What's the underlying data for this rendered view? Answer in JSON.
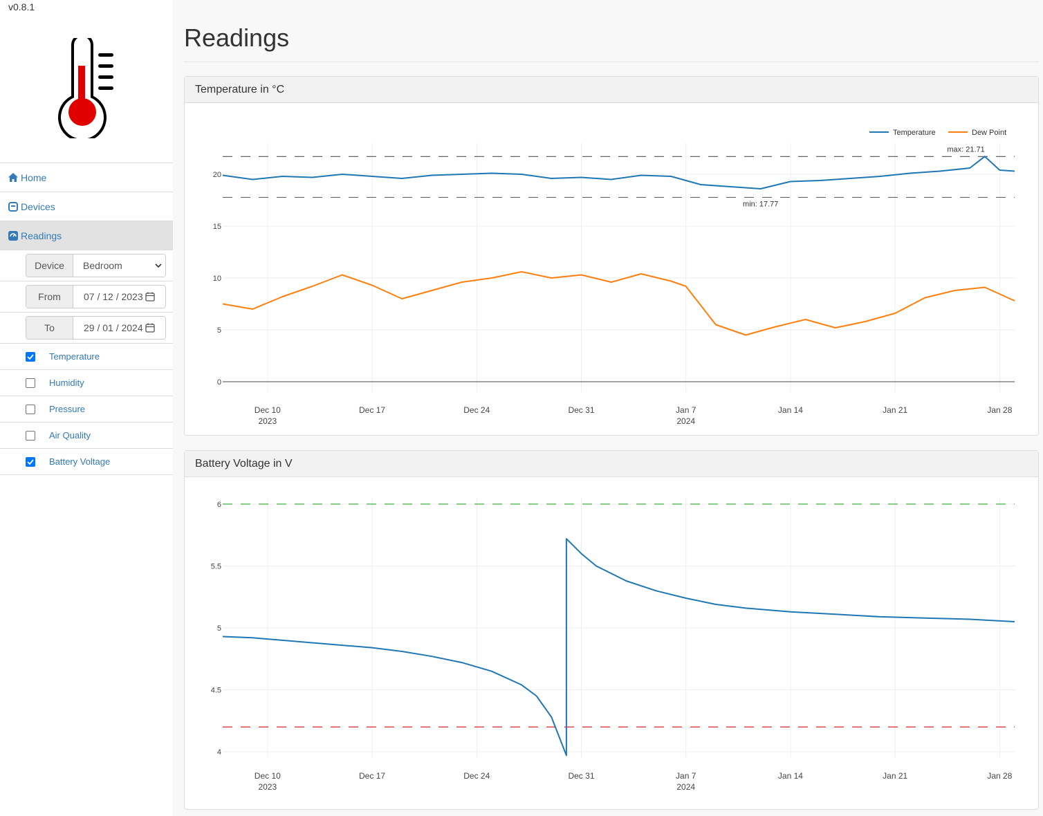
{
  "app": {
    "version": "v0.8.1"
  },
  "nav": {
    "home": "Home",
    "devices": "Devices",
    "readings": "Readings"
  },
  "filters": {
    "device_label": "Device",
    "device_value": "Bedroom",
    "from_label": "From",
    "from_value": "07 / 12 / 2023",
    "to_label": "To",
    "to_value": "29 / 01 / 2024"
  },
  "checkboxes": [
    {
      "label": "Temperature",
      "checked": true
    },
    {
      "label": "Humidity",
      "checked": false
    },
    {
      "label": "Pressure",
      "checked": false
    },
    {
      "label": "Air Quality",
      "checked": false
    },
    {
      "label": "Battery Voltage",
      "checked": true
    }
  ],
  "page": {
    "title": "Readings"
  },
  "panels": {
    "temp_title": "Temperature in °C",
    "battery_title": "Battery Voltage in V"
  },
  "colors": {
    "temperature": "#1f77b4",
    "dew_point": "#ff7f0e",
    "battery": "#1f77b4",
    "upper_limit": "#2ca02c",
    "lower_limit": "#d62728",
    "brand_red": "#e00000"
  },
  "chart_data": [
    {
      "type": "line",
      "title": "Temperature in °C",
      "xlim": [
        "2023-12-07",
        "2024-01-29"
      ],
      "ylim": [
        -1,
        23
      ],
      "x_ticks": [
        {
          "date": "2023-12-10",
          "label": "Dec 10",
          "sublabel": "2023"
        },
        {
          "date": "2023-12-17",
          "label": "Dec 17"
        },
        {
          "date": "2023-12-24",
          "label": "Dec 24"
        },
        {
          "date": "2023-12-31",
          "label": "Dec 31"
        },
        {
          "date": "2024-01-07",
          "label": "Jan 7",
          "sublabel": "2024"
        },
        {
          "date": "2024-01-14",
          "label": "Jan 14"
        },
        {
          "date": "2024-01-21",
          "label": "Jan 21"
        },
        {
          "date": "2024-01-28",
          "label": "Jan 28"
        }
      ],
      "y_ticks": [
        0,
        5,
        10,
        15,
        20
      ],
      "legend": {
        "placement": "top-right"
      },
      "series": [
        {
          "name": "Temperature",
          "x": [
            "2023-12-07",
            "2023-12-09",
            "2023-12-11",
            "2023-12-13",
            "2023-12-15",
            "2023-12-17",
            "2023-12-19",
            "2023-12-21",
            "2023-12-23",
            "2023-12-25",
            "2023-12-27",
            "2023-12-29",
            "2023-12-31",
            "2024-01-02",
            "2024-01-04",
            "2024-01-06",
            "2024-01-08",
            "2024-01-10",
            "2024-01-12",
            "2024-01-14",
            "2024-01-16",
            "2024-01-18",
            "2024-01-20",
            "2024-01-22",
            "2024-01-24",
            "2024-01-26",
            "2024-01-27",
            "2024-01-28",
            "2024-01-29"
          ],
          "y": [
            19.9,
            19.5,
            19.8,
            19.7,
            20.0,
            19.8,
            19.6,
            19.9,
            20.0,
            20.1,
            20.0,
            19.6,
            19.7,
            19.5,
            19.9,
            19.8,
            19.0,
            18.8,
            18.6,
            19.3,
            19.4,
            19.6,
            19.8,
            20.1,
            20.3,
            20.6,
            21.71,
            20.4,
            20.3
          ]
        },
        {
          "name": "Dew Point",
          "x": [
            "2023-12-07",
            "2023-12-09",
            "2023-12-11",
            "2023-12-13",
            "2023-12-15",
            "2023-12-17",
            "2023-12-19",
            "2023-12-21",
            "2023-12-23",
            "2023-12-25",
            "2023-12-27",
            "2023-12-29",
            "2023-12-31",
            "2024-01-02",
            "2024-01-04",
            "2024-01-06",
            "2024-01-07",
            "2024-01-09",
            "2024-01-11",
            "2024-01-13",
            "2024-01-15",
            "2024-01-17",
            "2024-01-19",
            "2024-01-21",
            "2024-01-23",
            "2024-01-25",
            "2024-01-27",
            "2024-01-29"
          ],
          "y": [
            7.5,
            7.0,
            8.2,
            9.2,
            10.3,
            9.3,
            8.0,
            8.8,
            9.6,
            10.0,
            10.6,
            10.0,
            10.3,
            9.6,
            10.4,
            9.7,
            9.2,
            5.5,
            4.5,
            5.3,
            6.0,
            5.2,
            5.8,
            6.6,
            8.1,
            8.8,
            9.1,
            7.8
          ]
        }
      ],
      "reference_lines": [
        {
          "value": 21.71,
          "label": "max: 21.71"
        },
        {
          "value": 17.77,
          "label": "min: 17.77"
        }
      ]
    },
    {
      "type": "line",
      "title": "Battery Voltage in V",
      "xlim": [
        "2023-12-07",
        "2024-01-29"
      ],
      "ylim": [
        3.95,
        6.05
      ],
      "x_ticks": [
        {
          "date": "2023-12-10",
          "label": "Dec 10",
          "sublabel": "2023"
        },
        {
          "date": "2023-12-17",
          "label": "Dec 17"
        },
        {
          "date": "2023-12-24",
          "label": "Dec 24"
        },
        {
          "date": "2023-12-31",
          "label": "Dec 31"
        },
        {
          "date": "2024-01-07",
          "label": "Jan 7",
          "sublabel": "2024"
        },
        {
          "date": "2024-01-14",
          "label": "Jan 14"
        },
        {
          "date": "2024-01-21",
          "label": "Jan 21"
        },
        {
          "date": "2024-01-28",
          "label": "Jan 28"
        }
      ],
      "y_ticks": [
        4,
        4.5,
        5,
        5.5,
        6
      ],
      "series": [
        {
          "x": [
            "2023-12-07",
            "2023-12-09",
            "2023-12-11",
            "2023-12-13",
            "2023-12-15",
            "2023-12-17",
            "2023-12-19",
            "2023-12-21",
            "2023-12-23",
            "2023-12-25",
            "2023-12-27",
            "2023-12-28",
            "2023-12-29",
            "2023-12-30",
            "2023-12-30",
            "2023-12-31",
            "2024-01-01",
            "2024-01-03",
            "2024-01-05",
            "2024-01-07",
            "2024-01-09",
            "2024-01-11",
            "2024-01-14",
            "2024-01-17",
            "2024-01-20",
            "2024-01-23",
            "2024-01-26",
            "2024-01-29"
          ],
          "y": [
            4.93,
            4.92,
            4.9,
            4.88,
            4.86,
            4.84,
            4.81,
            4.77,
            4.72,
            4.65,
            4.54,
            4.45,
            4.28,
            3.97,
            5.72,
            5.6,
            5.5,
            5.38,
            5.3,
            5.24,
            5.19,
            5.16,
            5.13,
            5.11,
            5.09,
            5.08,
            5.07,
            5.05
          ]
        }
      ],
      "reference_lines": [
        {
          "value": 6.0
        },
        {
          "value": 4.2
        }
      ]
    }
  ]
}
